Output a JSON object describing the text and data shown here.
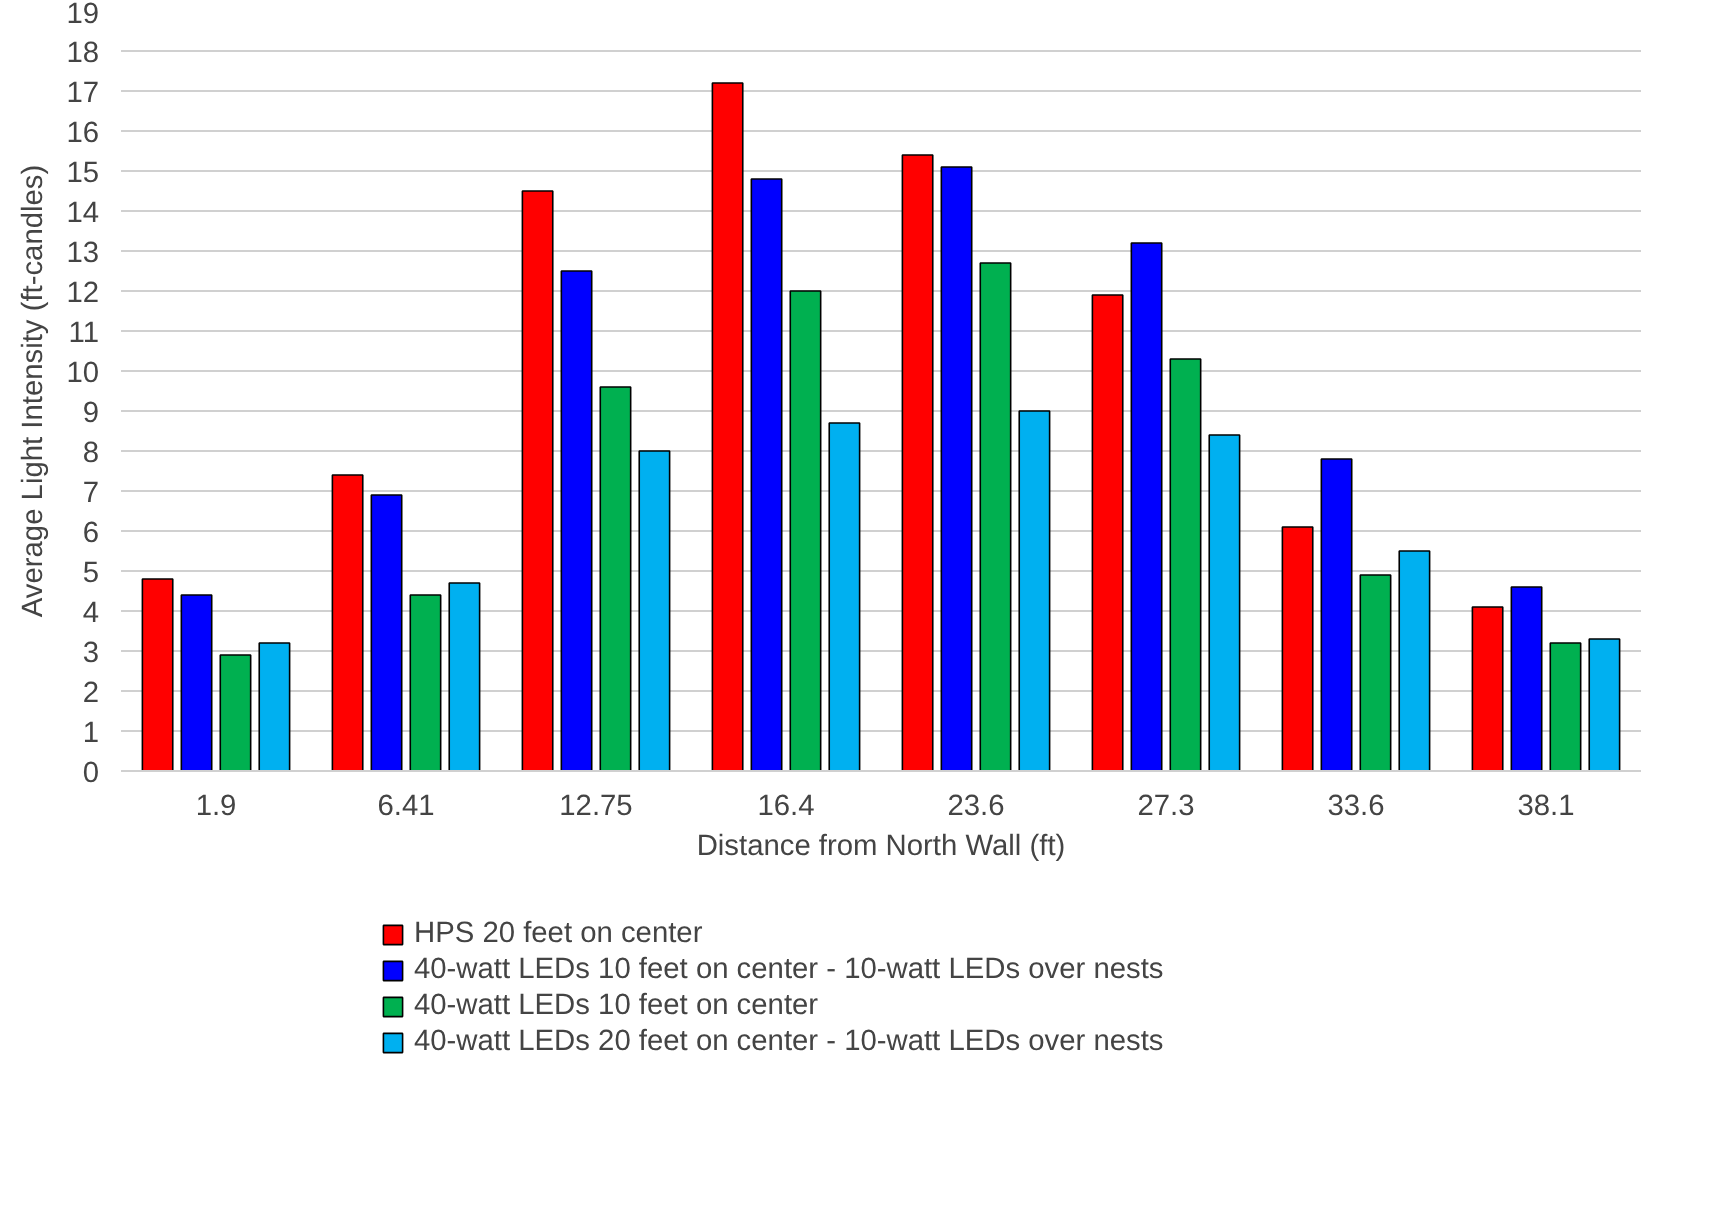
{
  "chart_data": {
    "type": "bar",
    "xlabel": "Distance from North Wall (ft)",
    "ylabel": "Average Light Intensity (ft-candles)",
    "categories": [
      "1.9",
      "6.41",
      "12.75",
      "16.4",
      "23.6",
      "27.3",
      "33.6",
      "38.1"
    ],
    "series": [
      {
        "name": "HPS 20 feet on center",
        "color": "#ff0000",
        "values": [
          4.8,
          7.4,
          14.5,
          17.2,
          15.4,
          11.9,
          6.1,
          4.1
        ]
      },
      {
        "name": "40-watt LEDs 10 feet on center - 10-watt LEDs over nests",
        "color": "#0000ff",
        "values": [
          4.4,
          6.9,
          12.5,
          14.8,
          15.1,
          13.2,
          7.8,
          4.6
        ]
      },
      {
        "name": "40-watt LEDs 10 feet on center",
        "color": "#00b050",
        "values": [
          2.9,
          4.4,
          9.6,
          12.0,
          12.7,
          10.3,
          4.9,
          3.2
        ]
      },
      {
        "name": "40-watt LEDs 20 feet on center - 10-watt LEDs over nests",
        "color": "#00b0f0",
        "values": [
          3.2,
          4.7,
          8.0,
          8.7,
          9.0,
          8.4,
          5.5,
          3.3
        ]
      }
    ],
    "ylim": [
      0,
      19
    ],
    "yticks": [
      0,
      1,
      2,
      3,
      4,
      5,
      6,
      7,
      8,
      9,
      10,
      11,
      12,
      13,
      14,
      15,
      16,
      17,
      18,
      19
    ],
    "grid": "y",
    "legend": "bottom"
  }
}
